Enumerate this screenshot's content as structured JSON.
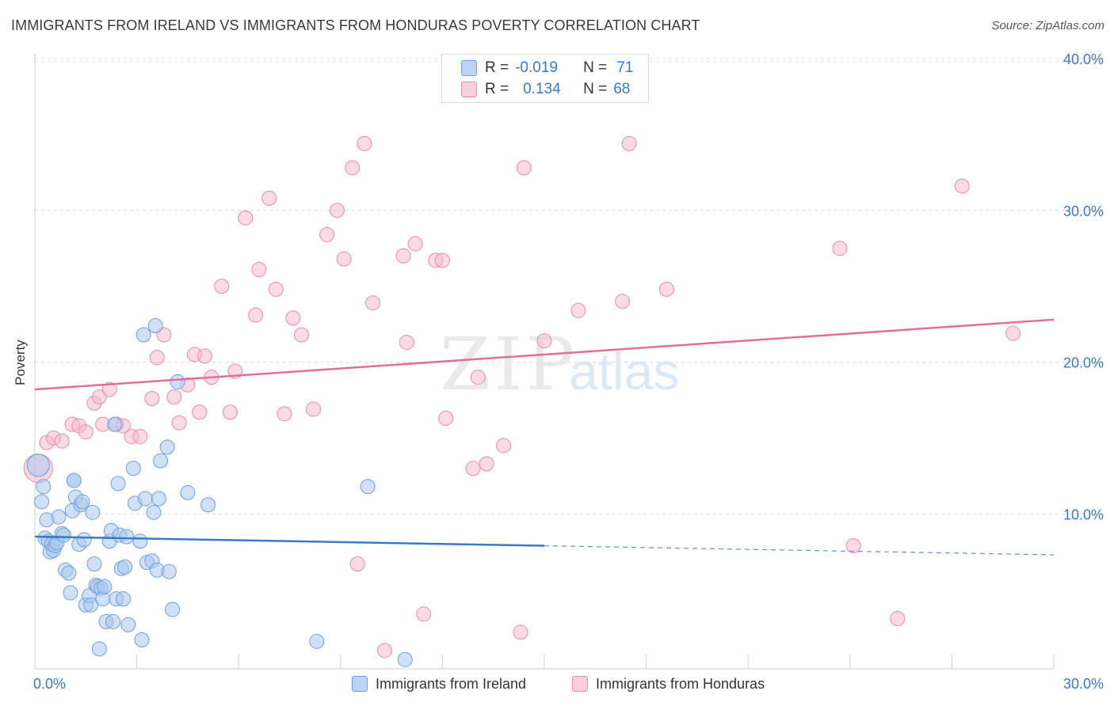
{
  "title": "IMMIGRANTS FROM IRELAND VS IMMIGRANTS FROM HONDURAS POVERTY CORRELATION CHART",
  "source": "Source: ZipAtlas.com",
  "watermark": {
    "zip": "ZIP",
    "atlas": "atlas"
  },
  "legend_stats": {
    "ireland": {
      "r_label": "R =",
      "r_value": "-0.019",
      "n_label": "N =",
      "n_value": "71"
    },
    "honduras": {
      "r_label": "R =",
      "r_value": "0.134",
      "n_label": "N =",
      "n_value": "68"
    }
  },
  "colors": {
    "ireland_fill": "#a9c8f0",
    "ireland_stroke": "#6f9fdc",
    "ireland_line": "#3a78c8",
    "honduras_fill": "#f6b8cc",
    "honduras_stroke": "#e98aaa",
    "honduras_line": "#e07098",
    "grid": "#dcdcdc",
    "axis_label": "#3a78c8"
  },
  "chart_data": {
    "type": "scatter",
    "ylabel": "Poverty",
    "xlim": [
      0,
      30
    ],
    "ylim": [
      0,
      40
    ],
    "x_tick_labels": [
      "0.0%",
      "30.0%"
    ],
    "y_ticks": [
      10,
      20,
      30,
      40
    ],
    "y_tick_labels": [
      "10.0%",
      "20.0%",
      "30.0%",
      "40.0%"
    ],
    "grid": true,
    "series": [
      {
        "name": "Immigrants from Ireland",
        "trend": {
          "x": [
            0,
            15
          ],
          "y": [
            8.5,
            7.9
          ],
          "dashed_to": [
            30,
            7.3
          ]
        },
        "points": [
          [
            0.1,
            13.2
          ],
          [
            0.2,
            10.8
          ],
          [
            0.25,
            11.8
          ],
          [
            0.3,
            8.4
          ],
          [
            0.35,
            9.6
          ],
          [
            0.4,
            8.2
          ],
          [
            0.45,
            7.5
          ],
          [
            0.5,
            8.0
          ],
          [
            0.55,
            7.6
          ],
          [
            0.6,
            7.9
          ],
          [
            0.65,
            8.1
          ],
          [
            0.7,
            9.8
          ],
          [
            0.8,
            8.7
          ],
          [
            0.85,
            8.6
          ],
          [
            0.9,
            6.3
          ],
          [
            1.0,
            6.1
          ],
          [
            1.05,
            4.8
          ],
          [
            1.1,
            10.2
          ],
          [
            1.15,
            12.2
          ],
          [
            1.2,
            11.1
          ],
          [
            1.3,
            8.0
          ],
          [
            1.35,
            10.6
          ],
          [
            1.4,
            10.8
          ],
          [
            1.45,
            8.3
          ],
          [
            1.5,
            4.0
          ],
          [
            1.6,
            4.6
          ],
          [
            1.65,
            4.0
          ],
          [
            1.7,
            10.1
          ],
          [
            1.75,
            6.7
          ],
          [
            1.8,
            5.3
          ],
          [
            1.85,
            5.2
          ],
          [
            1.9,
            1.1
          ],
          [
            1.95,
            5.1
          ],
          [
            2.0,
            4.4
          ],
          [
            2.05,
            5.2
          ],
          [
            2.1,
            2.9
          ],
          [
            2.2,
            8.2
          ],
          [
            2.25,
            8.9
          ],
          [
            2.3,
            2.9
          ],
          [
            2.35,
            15.9
          ],
          [
            2.4,
            4.4
          ],
          [
            2.45,
            12.0
          ],
          [
            2.5,
            8.6
          ],
          [
            2.55,
            6.4
          ],
          [
            2.6,
            4.4
          ],
          [
            2.65,
            6.5
          ],
          [
            2.7,
            8.5
          ],
          [
            2.75,
            2.7
          ],
          [
            2.9,
            13.0
          ],
          [
            2.95,
            10.7
          ],
          [
            3.1,
            8.2
          ],
          [
            3.15,
            1.7
          ],
          [
            3.2,
            21.8
          ],
          [
            3.25,
            11.0
          ],
          [
            3.3,
            6.8
          ],
          [
            3.45,
            6.9
          ],
          [
            3.5,
            10.1
          ],
          [
            3.55,
            22.4
          ],
          [
            3.6,
            6.3
          ],
          [
            3.65,
            11.0
          ],
          [
            3.7,
            13.5
          ],
          [
            3.95,
            6.2
          ],
          [
            3.9,
            14.4
          ],
          [
            4.05,
            3.7
          ],
          [
            4.2,
            18.7
          ],
          [
            4.5,
            11.4
          ],
          [
            5.1,
            10.6
          ],
          [
            8.3,
            1.6
          ],
          [
            9.8,
            11.8
          ],
          [
            10.9,
            0.4
          ],
          [
            1.15,
            12.2
          ]
        ]
      },
      {
        "name": "Immigrants from Honduras",
        "trend": {
          "x": [
            0,
            30
          ],
          "y": [
            18.2,
            22.8
          ]
        },
        "points": [
          [
            0.1,
            13.0
          ],
          [
            0.35,
            14.7
          ],
          [
            0.55,
            15.0
          ],
          [
            0.8,
            14.8
          ],
          [
            1.1,
            15.9
          ],
          [
            1.3,
            15.8
          ],
          [
            1.5,
            15.4
          ],
          [
            1.75,
            17.3
          ],
          [
            1.9,
            17.7
          ],
          [
            2.0,
            15.9
          ],
          [
            2.2,
            18.2
          ],
          [
            2.4,
            15.9
          ],
          [
            2.6,
            15.8
          ],
          [
            2.85,
            15.1
          ],
          [
            3.1,
            15.1
          ],
          [
            3.45,
            17.6
          ],
          [
            3.6,
            20.3
          ],
          [
            3.8,
            21.8
          ],
          [
            4.1,
            17.7
          ],
          [
            4.25,
            16.0
          ],
          [
            4.5,
            18.5
          ],
          [
            4.7,
            20.5
          ],
          [
            4.85,
            16.7
          ],
          [
            5.0,
            20.4
          ],
          [
            5.2,
            19.0
          ],
          [
            5.5,
            25.0
          ],
          [
            5.75,
            16.7
          ],
          [
            5.9,
            19.4
          ],
          [
            6.2,
            29.5
          ],
          [
            6.5,
            23.1
          ],
          [
            6.6,
            26.1
          ],
          [
            6.9,
            30.8
          ],
          [
            7.1,
            24.8
          ],
          [
            7.35,
            16.6
          ],
          [
            7.6,
            22.9
          ],
          [
            7.85,
            21.8
          ],
          [
            8.2,
            16.9
          ],
          [
            8.6,
            28.4
          ],
          [
            8.9,
            30.0
          ],
          [
            9.1,
            26.8
          ],
          [
            9.35,
            32.8
          ],
          [
            9.5,
            6.7
          ],
          [
            9.7,
            34.4
          ],
          [
            9.95,
            23.9
          ],
          [
            10.3,
            1.0
          ],
          [
            10.85,
            27.0
          ],
          [
            10.95,
            21.3
          ],
          [
            11.2,
            27.8
          ],
          [
            11.45,
            3.4
          ],
          [
            11.8,
            26.7
          ],
          [
            12.1,
            16.3
          ],
          [
            12.9,
            13.0
          ],
          [
            13.05,
            19.0
          ],
          [
            13.3,
            13.3
          ],
          [
            13.8,
            14.5
          ],
          [
            14.3,
            2.2
          ],
          [
            14.4,
            32.8
          ],
          [
            15.0,
            21.4
          ],
          [
            16.0,
            23.4
          ],
          [
            17.3,
            24.0
          ],
          [
            17.5,
            34.4
          ],
          [
            18.6,
            24.8
          ],
          [
            23.7,
            27.5
          ],
          [
            24.1,
            7.9
          ],
          [
            25.4,
            3.1
          ],
          [
            27.3,
            31.6
          ],
          [
            28.8,
            21.9
          ],
          [
            12.0,
            26.7
          ]
        ]
      }
    ]
  },
  "bottom_legend": {
    "ireland": "Immigrants from Ireland",
    "honduras": "Immigrants from Honduras"
  }
}
